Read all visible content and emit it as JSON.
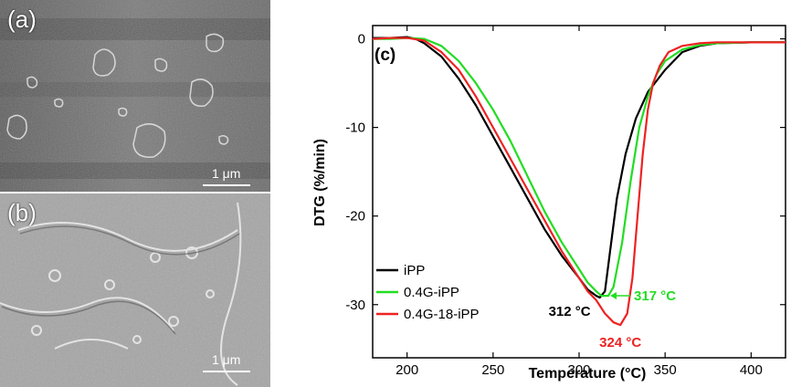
{
  "panels": {
    "a": {
      "label": "(a)",
      "scale": "1 μm"
    },
    "b": {
      "label": "(b)",
      "scale": "1 μm"
    }
  },
  "chart_data": {
    "type": "line",
    "panel_label": "(c)",
    "xlabel": "Temperature (°C)",
    "ylabel": "DTG (%/min)",
    "xlim": [
      180,
      420
    ],
    "ylim": [
      -36,
      1.5
    ],
    "xticks": [
      200,
      250,
      300,
      350,
      400
    ],
    "yticks": [
      0,
      -10,
      -20,
      -30
    ],
    "legend_position": "bottom-left",
    "series": [
      {
        "name": "iPP",
        "color": "#000000",
        "points": [
          [
            180,
            0.1
          ],
          [
            190,
            0.1
          ],
          [
            200,
            0.2
          ],
          [
            205,
            0
          ],
          [
            210,
            -0.5
          ],
          [
            220,
            -2
          ],
          [
            230,
            -4.5
          ],
          [
            240,
            -7.5
          ],
          [
            250,
            -11
          ],
          [
            260,
            -14.5
          ],
          [
            270,
            -18
          ],
          [
            280,
            -21.5
          ],
          [
            290,
            -24.5
          ],
          [
            300,
            -27
          ],
          [
            305,
            -28.3
          ],
          [
            310,
            -29
          ],
          [
            312,
            -29.2
          ],
          [
            315,
            -28.5
          ],
          [
            318,
            -24
          ],
          [
            322,
            -18
          ],
          [
            327,
            -13
          ],
          [
            333,
            -9
          ],
          [
            340,
            -6
          ],
          [
            350,
            -3.5
          ],
          [
            360,
            -1.5
          ],
          [
            370,
            -0.8
          ],
          [
            380,
            -0.5
          ],
          [
            400,
            -0.4
          ],
          [
            420,
            -0.4
          ]
        ]
      },
      {
        "name": "0.4G-iPP",
        "color": "#22dd22",
        "points": [
          [
            180,
            0
          ],
          [
            190,
            0
          ],
          [
            200,
            0.1
          ],
          [
            210,
            0
          ],
          [
            220,
            -0.8
          ],
          [
            230,
            -2.5
          ],
          [
            240,
            -5
          ],
          [
            250,
            -8
          ],
          [
            260,
            -11.5
          ],
          [
            270,
            -15.5
          ],
          [
            280,
            -19.5
          ],
          [
            290,
            -23
          ],
          [
            300,
            -26
          ],
          [
            305,
            -27.5
          ],
          [
            310,
            -28.5
          ],
          [
            313,
            -29
          ],
          [
            317,
            -29
          ],
          [
            320,
            -28
          ],
          [
            325,
            -23
          ],
          [
            330,
            -16
          ],
          [
            335,
            -10
          ],
          [
            340,
            -6.5
          ],
          [
            345,
            -4
          ],
          [
            350,
            -2.5
          ],
          [
            360,
            -1.2
          ],
          [
            370,
            -0.7
          ],
          [
            380,
            -0.5
          ],
          [
            400,
            -0.4
          ],
          [
            420,
            -0.4
          ]
        ]
      },
      {
        "name": "0.4G-18-iPP",
        "color": "#ee2222",
        "points": [
          [
            180,
            0
          ],
          [
            190,
            0.1
          ],
          [
            200,
            0.1
          ],
          [
            210,
            -0.2
          ],
          [
            220,
            -1.5
          ],
          [
            230,
            -3.5
          ],
          [
            240,
            -6.5
          ],
          [
            250,
            -10
          ],
          [
            260,
            -13.5
          ],
          [
            270,
            -17
          ],
          [
            280,
            -20.5
          ],
          [
            290,
            -24
          ],
          [
            300,
            -27
          ],
          [
            305,
            -28.5
          ],
          [
            310,
            -29.5
          ],
          [
            315,
            -31
          ],
          [
            320,
            -32
          ],
          [
            324,
            -32.3
          ],
          [
            328,
            -31
          ],
          [
            331,
            -27
          ],
          [
            334,
            -20
          ],
          [
            337,
            -13
          ],
          [
            340,
            -8
          ],
          [
            343,
            -5
          ],
          [
            347,
            -3
          ],
          [
            352,
            -1.5
          ],
          [
            360,
            -0.8
          ],
          [
            370,
            -0.5
          ],
          [
            380,
            -0.4
          ],
          [
            400,
            -0.4
          ],
          [
            420,
            -0.4
          ]
        ]
      }
    ],
    "annotations": [
      {
        "text": "312 °C",
        "x": 312,
        "y": -29.2,
        "color": "#000000"
      },
      {
        "text": "317 °C",
        "x": 317,
        "y": -29,
        "color": "#22dd22"
      },
      {
        "text": "324 °C",
        "x": 324,
        "y": -32.3,
        "color": "#ee2222"
      }
    ]
  }
}
